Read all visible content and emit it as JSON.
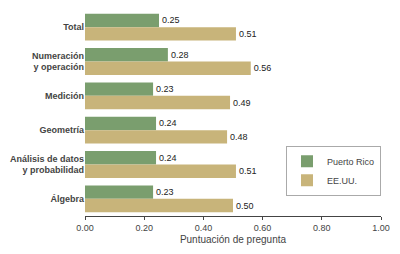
{
  "chart_data": {
    "type": "bar",
    "orientation": "horizontal",
    "categories": [
      "Total",
      "Numeración\ny operación",
      "Medición",
      "Geometría",
      "Análisis de datos\ny probabilidad",
      "Álgebra"
    ],
    "series": [
      {
        "name": "Puerto Rico",
        "color": "#7a9e6e",
        "values": [
          0.25,
          0.28,
          0.23,
          0.24,
          0.24,
          0.23
        ],
        "value_labels": [
          "0.25",
          "0.28",
          "0.23",
          "0.24",
          "0.24",
          "0.23"
        ]
      },
      {
        "name": "EE.UU.",
        "color": "#c8b47a",
        "values": [
          0.51,
          0.56,
          0.49,
          0.48,
          0.51,
          0.5
        ],
        "value_labels": [
          "0.51",
          "0.56",
          "0.49",
          "0.48",
          "0.51",
          "0.50"
        ]
      }
    ],
    "xlabel": "Puntuación de pregunta",
    "xlim": [
      0.0,
      1.0
    ],
    "xticks": [
      {
        "value": 0.0,
        "label": "0.00"
      },
      {
        "value": 0.2,
        "label": "0.20"
      },
      {
        "value": 0.4,
        "label": "0.40"
      },
      {
        "value": 0.6,
        "label": "0.60"
      },
      {
        "value": 0.8,
        "label": "0.80"
      },
      {
        "value": 1.0,
        "label": "1.00"
      }
    ],
    "data_labels": true,
    "grid": false,
    "legend": "right"
  }
}
